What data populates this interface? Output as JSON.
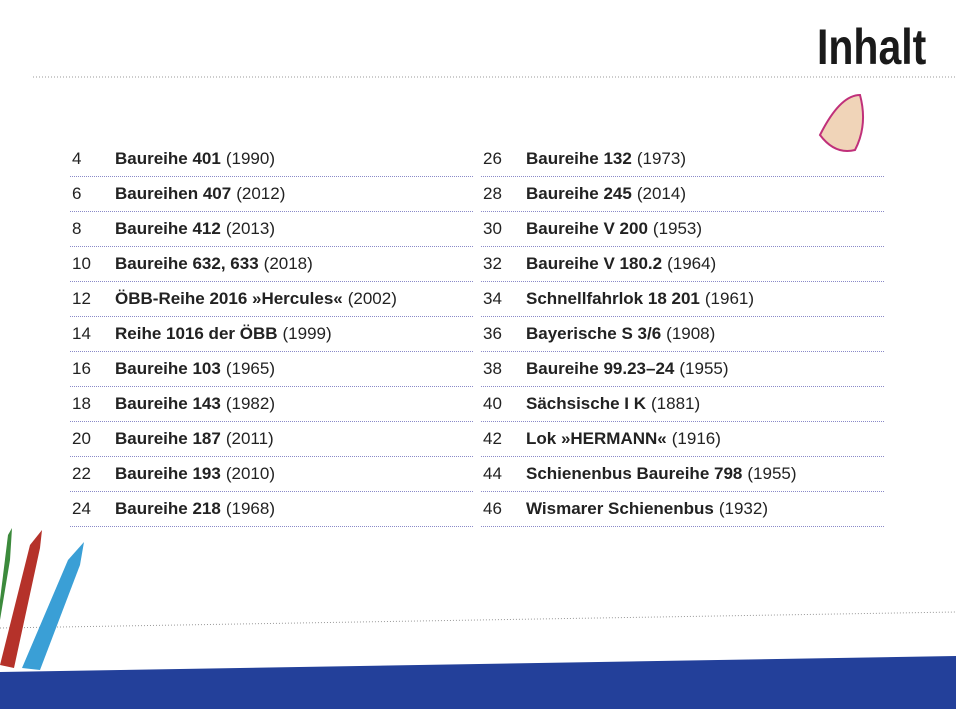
{
  "header": {
    "title": "Inhalt"
  },
  "columns": [
    [
      {
        "page": 4,
        "name": "Baureihe 401",
        "year": "(1990)"
      },
      {
        "page": 6,
        "name": "Baureihen 407",
        "year": "(2012)"
      },
      {
        "page": 8,
        "name": "Baureihe 412",
        "year": "(2013)"
      },
      {
        "page": 10,
        "name": "Baureihe 632, 633",
        "year": "(2018)"
      },
      {
        "page": 12,
        "name": "ÖBB-Reihe 2016 »Hercules«",
        "year": "(2002)"
      },
      {
        "page": 14,
        "name": "Reihe 1016 der ÖBB",
        "year": "(1999)"
      },
      {
        "page": 16,
        "name": "Baureihe 103",
        "year": "(1965)"
      },
      {
        "page": 18,
        "name": "Baureihe 143",
        "year": "(1982)"
      },
      {
        "page": 20,
        "name": "Baureihe 187",
        "year": "(2011)"
      },
      {
        "page": 22,
        "name": "Baureihe 193",
        "year": "(2010)"
      },
      {
        "page": 24,
        "name": "Baureihe 218",
        "year": "(1968)"
      }
    ],
    [
      {
        "page": 26,
        "name": "Baureihe 132",
        "year": "(1973)"
      },
      {
        "page": 28,
        "name": "Baureihe 245",
        "year": "(2014)"
      },
      {
        "page": 30,
        "name": "Baureihe V 200",
        "year": "(1953)"
      },
      {
        "page": 32,
        "name": "Baureihe V 180.2",
        "year": "(1964)"
      },
      {
        "page": 34,
        "name": "Schnellfahrlok 18 201",
        "year": "(1961)"
      },
      {
        "page": 36,
        "name": "Bayerische S 3/6",
        "year": "(1908)"
      },
      {
        "page": 38,
        "name": "Baureihe 99.23–24",
        "year": "(1955)"
      },
      {
        "page": 40,
        "name": "Sächsische I K",
        "year": "(1881)"
      },
      {
        "page": 42,
        "name": "Lok »HERMANN«",
        "year": "(1916)"
      },
      {
        "page": 44,
        "name": "Schienenbus Baureihe 798",
        "year": "(1955)"
      },
      {
        "page": 46,
        "name": "Wismarer Schienenbus",
        "year": "(1932)"
      }
    ]
  ]
}
